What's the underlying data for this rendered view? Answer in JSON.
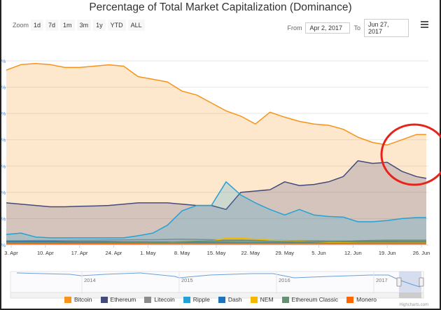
{
  "chart_data": {
    "type": "area",
    "title": "Percentage of Total Market Capitalization (Dominance)",
    "y_unit": "%",
    "ylim": [
      0,
      70
    ],
    "y_tick_labels": [
      "%",
      "%",
      "%",
      "%",
      "%",
      "%",
      "%",
      "%"
    ],
    "x_tick_labels": [
      "3. Apr",
      "10. Apr",
      "17. Apr",
      "24. Apr",
      "1. May",
      "8. May",
      "15. May",
      "22. May",
      "29. May",
      "5. Jun",
      "12. Jun",
      "19. Jun",
      "26. Jun"
    ],
    "grid": true,
    "legend_placement": "bottom",
    "x": [
      "2017-04-02",
      "2017-04-05",
      "2017-04-08",
      "2017-04-11",
      "2017-04-14",
      "2017-04-17",
      "2017-04-20",
      "2017-04-23",
      "2017-04-26",
      "2017-04-29",
      "2017-05-02",
      "2017-05-05",
      "2017-05-08",
      "2017-05-11",
      "2017-05-14",
      "2017-05-17",
      "2017-05-20",
      "2017-05-23",
      "2017-05-26",
      "2017-05-29",
      "2017-06-01",
      "2017-06-04",
      "2017-06-07",
      "2017-06-10",
      "2017-06-13",
      "2017-06-16",
      "2017-06-19",
      "2017-06-22",
      "2017-06-25",
      "2017-06-27"
    ],
    "series": [
      {
        "name": "Bitcoin",
        "color": "#f7931a",
        "values": [
          66.5,
          68.6,
          69,
          68.6,
          67.5,
          67.5,
          68,
          68.5,
          68,
          64,
          63,
          62,
          58.5,
          57,
          54,
          51,
          49,
          46,
          50.5,
          48.6,
          47,
          46,
          45.5,
          44,
          41,
          39,
          38,
          40,
          42,
          42
        ]
      },
      {
        "name": "Ethereum",
        "color": "#434a7c",
        "values": [
          16,
          15.5,
          15,
          14.5,
          14.5,
          14.7,
          14.8,
          15,
          15.5,
          16,
          16,
          16,
          15.5,
          15,
          15,
          13.5,
          20,
          20.5,
          21,
          24,
          22.6,
          23,
          24,
          26,
          32,
          31,
          31.4,
          28,
          26,
          25.3
        ]
      },
      {
        "name": "Litecoin",
        "color": "#8c8c8c",
        "values": [
          1.6,
          1.6,
          1.7,
          1.7,
          1.7,
          1.8,
          1.8,
          1.9,
          1.9,
          2,
          2,
          2.1,
          2.2,
          2.1,
          2,
          1.9,
          1.9,
          1.8,
          1.8,
          1.7,
          1.6,
          1.6,
          1.5,
          1.5,
          1.4,
          1.4,
          1.5,
          1.6,
          1.6,
          1.6
        ]
      },
      {
        "name": "Ripple",
        "color": "#23a2d7",
        "values": [
          4,
          4.5,
          3,
          2.7,
          2.7,
          2.7,
          2.7,
          2.7,
          2.7,
          3.5,
          4.5,
          7.5,
          13,
          15,
          15,
          24,
          19,
          16,
          13.5,
          11.4,
          13.5,
          11.4,
          10.8,
          10.6,
          8.8,
          8.8,
          9.3,
          10,
          10.4,
          10.4
        ]
      },
      {
        "name": "Dash",
        "color": "#1c75bc",
        "values": [
          1.3,
          1.3,
          1.3,
          1.3,
          1.2,
          1.2,
          1.2,
          1.2,
          1.1,
          1.1,
          1.1,
          1.1,
          1,
          1,
          1,
          1,
          0.9,
          0.9,
          0.9,
          0.9,
          0.9,
          1,
          1,
          1,
          1,
          1,
          1.1,
          1.1,
          1.1,
          1.1
        ]
      },
      {
        "name": "NEM",
        "color": "#f5b800",
        "values": [
          0.6,
          0.6,
          0.6,
          0.6,
          0.6,
          0.6,
          0.6,
          0.7,
          0.7,
          0.8,
          0.9,
          1,
          1.2,
          1.5,
          1.5,
          2.5,
          2.6,
          2.2,
          1.8,
          1.6,
          1.4,
          1.2,
          1,
          0.9,
          0.8,
          0.8,
          0.8,
          0.8,
          0.8,
          0.8
        ]
      },
      {
        "name": "Ethereum Classic",
        "color": "#669073",
        "values": [
          0.8,
          0.8,
          0.8,
          0.8,
          0.8,
          0.8,
          0.8,
          0.9,
          0.9,
          0.9,
          1,
          1,
          1.2,
          1.4,
          1.5,
          1.6,
          1.6,
          1.5,
          1.4,
          1.3,
          1.2,
          1.2,
          1.3,
          1.4,
          1.6,
          1.7,
          1.8,
          1.8,
          1.8,
          1.8
        ]
      },
      {
        "name": "Monero",
        "color": "#ff6600",
        "values": [
          0.5,
          0.5,
          0.5,
          0.5,
          0.5,
          0.5,
          0.5,
          0.5,
          0.5,
          0.5,
          0.6,
          0.6,
          0.6,
          0.6,
          0.6,
          0.6,
          0.6,
          0.6,
          0.6,
          0.6,
          0.6,
          0.6,
          0.6,
          0.6,
          0.6,
          0.6,
          0.6,
          0.6,
          0.6,
          0.6
        ]
      }
    ],
    "navigator": {
      "x_tick_labels": [
        "2014",
        "2015",
        "2016",
        "2017"
      ]
    }
  },
  "toolbar": {
    "zoom_label": "Zoom",
    "zoom_buttons": [
      "1d",
      "7d",
      "1m",
      "3m",
      "1y",
      "YTD",
      "ALL"
    ],
    "from_label": "From",
    "from_value": "Apr 2, 2017",
    "to_label": "To",
    "to_value": "Jun 27, 2017"
  },
  "annotation": {
    "color": "#e8231a"
  },
  "credit": "Highcharts.com"
}
